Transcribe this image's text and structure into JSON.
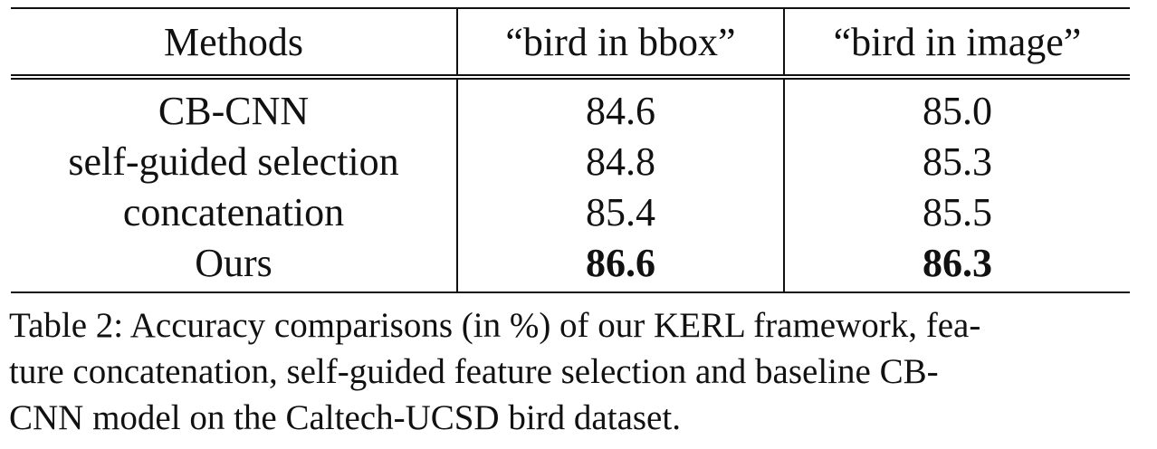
{
  "table": {
    "headers": [
      "Methods",
      "“bird in bbox”",
      "“bird in image”"
    ],
    "rows": [
      {
        "method": "CB-CNN",
        "bbox": "84.6",
        "image": "85.0"
      },
      {
        "method": "self-guided selection",
        "bbox": "84.8",
        "image": "85.3"
      },
      {
        "method": "concatenation",
        "bbox": "85.4",
        "image": "85.5"
      },
      {
        "method": "Ours",
        "bbox": "86.6",
        "image": "86.3"
      }
    ]
  },
  "caption": {
    "line1": "Table 2: Accuracy comparisons (in %) of our KERL framework, fea-",
    "line2": "ture concatenation, self-guided feature selection and baseline CB-",
    "line3": "CNN model on the Caltech-UCSD bird dataset."
  }
}
